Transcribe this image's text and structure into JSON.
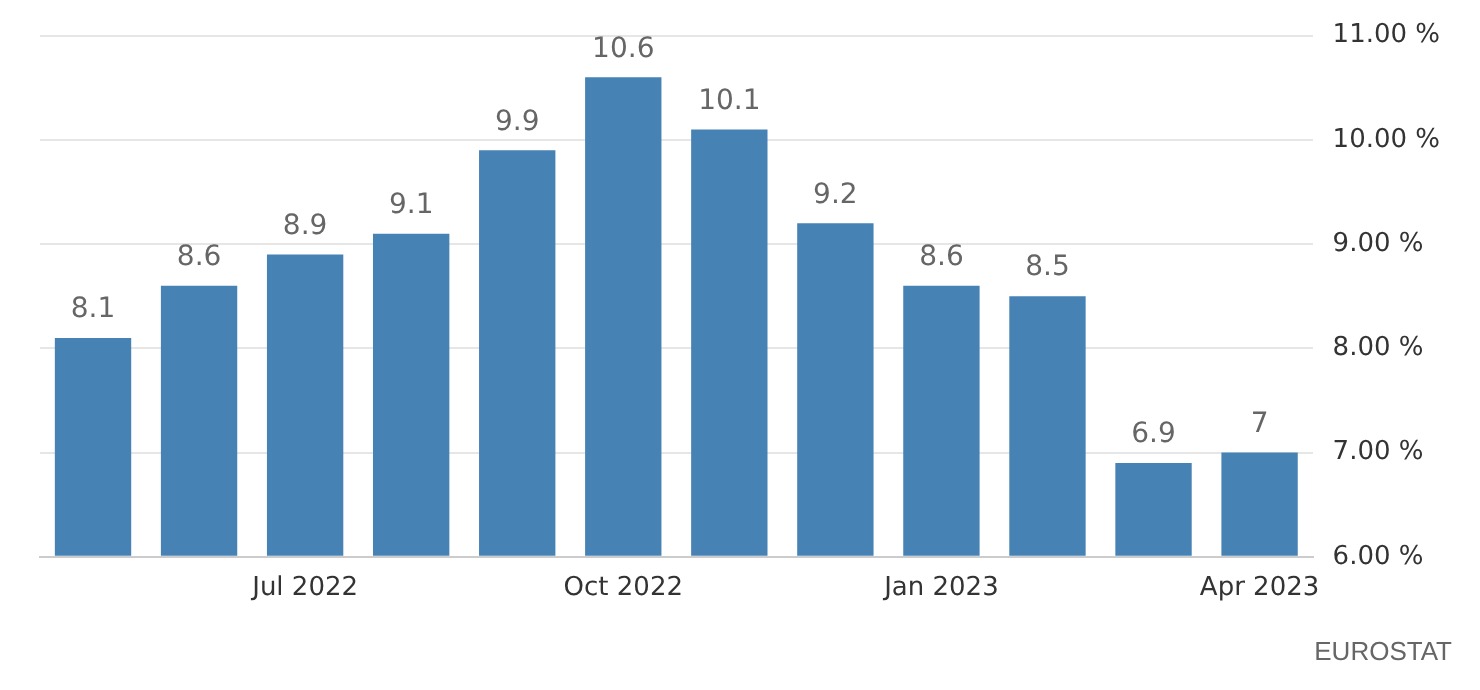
{
  "chart_data": {
    "type": "bar",
    "categories": [
      null,
      null,
      "Jul 2022",
      null,
      null,
      "Oct 2022",
      null,
      null,
      "Jan 2023",
      null,
      null,
      "Apr 2023"
    ],
    "values": [
      8.1,
      8.6,
      8.9,
      9.1,
      9.9,
      10.6,
      10.1,
      9.2,
      8.6,
      8.5,
      6.9,
      7
    ],
    "color": "#4682b4",
    "ylim": [
      6,
      11
    ],
    "yticks": [
      {
        "value": 6,
        "label": "6.00 %"
      },
      {
        "value": 7,
        "label": "7.00 %"
      },
      {
        "value": 8,
        "label": "8.00 %"
      },
      {
        "value": 9,
        "label": "9.00 %"
      },
      {
        "value": 10,
        "label": "10.00 %"
      },
      {
        "value": 11,
        "label": "11.00 %"
      }
    ],
    "grid": "y",
    "data_labels": true,
    "legend": false,
    "annotations": [
      "EUROSTAT"
    ]
  }
}
